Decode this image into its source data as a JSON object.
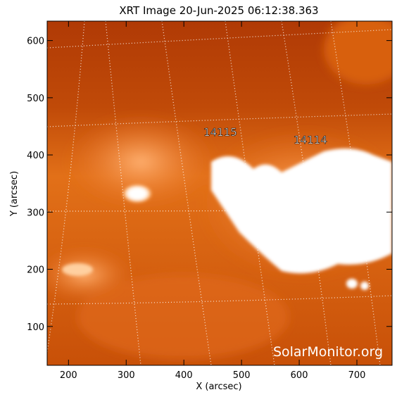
{
  "chart_data": {
    "type": "image",
    "title": "XRT Image 20-Jun-2025 06:12:38.363",
    "x_label": "X (arcsec)",
    "y_label": "Y (arcsec)",
    "xlim": [
      163,
      761
    ],
    "ylim": [
      32,
      634
    ],
    "xticks": [
      200,
      300,
      400,
      500,
      600,
      700
    ],
    "yticks": [
      100,
      200,
      300,
      400,
      500,
      600
    ],
    "annotations": [
      "14115",
      "14114"
    ],
    "watermark": "SolarMonitor.org"
  }
}
